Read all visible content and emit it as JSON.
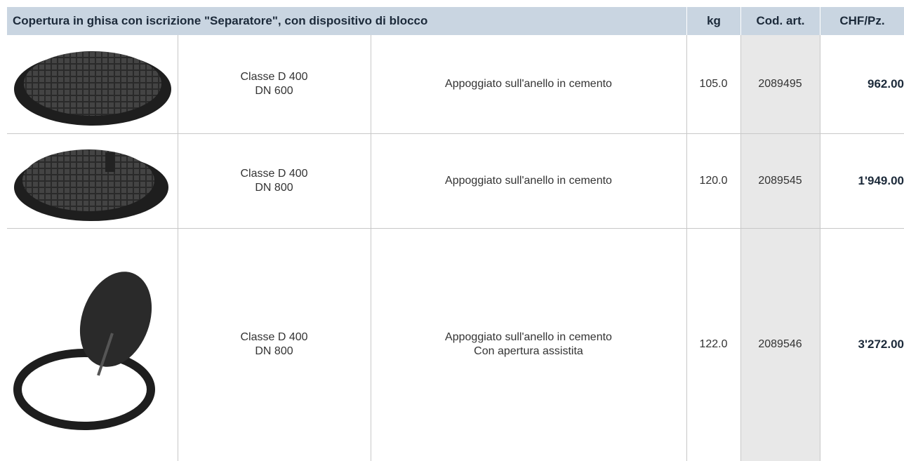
{
  "header": {
    "title": "Copertura in ghisa con iscrizione \"Separatore\", con dispositivo di blocco",
    "kg": "kg",
    "code": "Cod. art.",
    "price": "CHF/Pz."
  },
  "rows": [
    {
      "class": [
        "Classe D 400",
        "DN 600"
      ],
      "description": [
        "Appoggiato sull'anello in cemento"
      ],
      "kg": "105.0",
      "code": "2089495",
      "price": "962.00"
    },
    {
      "class": [
        "Classe D 400",
        "DN 800"
      ],
      "description": [
        "Appoggiato sull'anello in cemento"
      ],
      "kg": "120.0",
      "code": "2089545",
      "price": "1'949.00"
    },
    {
      "class": [
        "Classe D 400",
        "DN 800"
      ],
      "description": [
        "Appoggiato sull'anello in cemento",
        "Con apertura assistita"
      ],
      "kg": "122.0",
      "code": "2089546",
      "price": "3'272.00"
    }
  ]
}
